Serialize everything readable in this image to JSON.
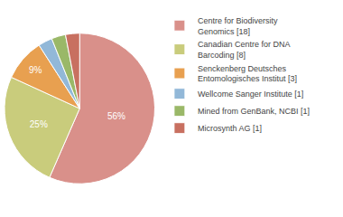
{
  "chart_data": {
    "type": "pie",
    "categories": [
      "Centre for Biodiversity\nGenomics [18]",
      "Canadian Centre for DNA\nBarcoding [8]",
      "Senckenberg Deutsches\nEntomologisches Institut [3]",
      "Wellcome Sanger Institute [1]",
      "Mined from GenBank, NCBI [1]",
      "Microsynth AG [1]"
    ],
    "values": [
      56,
      25,
      9,
      3,
      3,
      3
    ],
    "value_labels": [
      "56%",
      "25%",
      "9%",
      null,
      null,
      null
    ],
    "data_labels": true,
    "colors": [
      "#d9908a",
      "#c9cc7c",
      "#e8a050",
      "#92b8d8",
      "#9ab868",
      "#c87060"
    ],
    "legend": "right"
  }
}
